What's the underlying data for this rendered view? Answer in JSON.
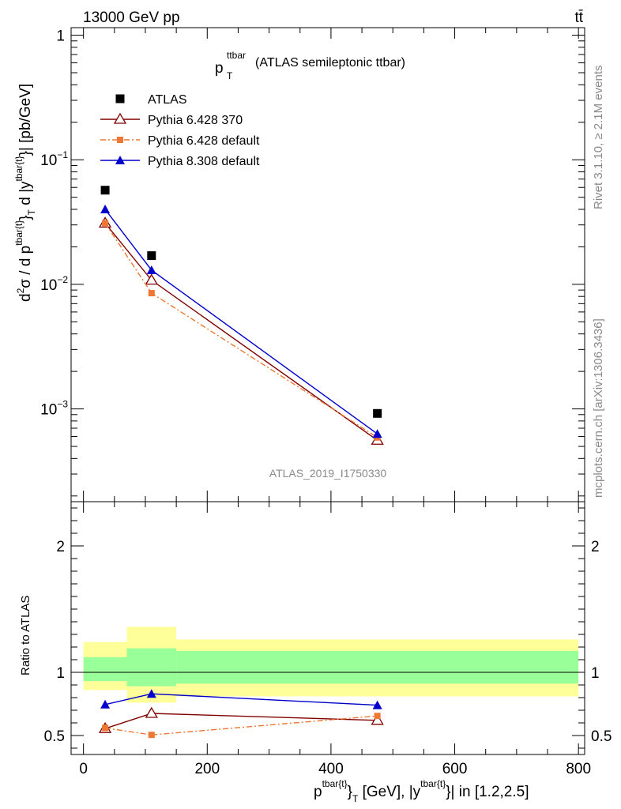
{
  "header": {
    "left": "13000 GeV pp",
    "right": "tt̄"
  },
  "side_labels": {
    "rivet": "Rivet 3.1.10, ≥ 2.1M events",
    "mcplots": "mcplots.cern.ch [arXiv:1306.3436]"
  },
  "chart_data": [
    {
      "type": "scatter",
      "title": "(ATLAS semileptonic ttbar)",
      "title_symbol": {
        "base": "p",
        "sup": "ttbar",
        "sub": "T"
      },
      "ylabel": {
        "d2": "d",
        "two": "2",
        "sigma": "σ / d p",
        "sup1": "tbar{t}",
        "sub1": "}",
        "subT": "T",
        "mid": " d |y",
        "sup2": "tbar{t}",
        "tail": "}| [pb/GeV]"
      },
      "xlim": [
        -20,
        810
      ],
      "ylim": [
        0.00018,
        1.15
      ],
      "yscale": "log",
      "yticks": [
        {
          "value": 1,
          "label": "1"
        },
        {
          "value": 0.1,
          "label": "10",
          "exp": "−1"
        },
        {
          "value": 0.01,
          "label": "10",
          "exp": "−2"
        },
        {
          "value": 0.001,
          "label": "10",
          "exp": "−3"
        }
      ],
      "watermark": "ATLAS_2019_I1750330",
      "legend_position": "top-left",
      "series": [
        {
          "name": "ATLAS",
          "style": "data",
          "color": "#000000",
          "x": [
            35,
            110,
            475
          ],
          "y": [
            0.057,
            0.017,
            0.00092
          ]
        },
        {
          "name": "Pythia 6.428 370",
          "style": "open-triangle",
          "color": "#800000",
          "x": [
            35,
            110,
            475
          ],
          "y": [
            0.031,
            0.0108,
            0.00056
          ]
        },
        {
          "name": "Pythia 6.428 default",
          "style": "dashdot-square",
          "color": "#ee7733",
          "x": [
            35,
            110,
            475
          ],
          "y": [
            0.031,
            0.0085,
            0.00059
          ]
        },
        {
          "name": "Pythia 8.308 default",
          "style": "filled-triangle",
          "color": "#0000cc",
          "x": [
            35,
            110,
            475
          ],
          "y": [
            0.04,
            0.013,
            0.00063
          ]
        }
      ]
    },
    {
      "type": "line",
      "ylabel": "Ratio to ATLAS",
      "xlabel": {
        "p": "p",
        "sup1": "tbar{t}",
        "sub": "}",
        "subT": "T",
        "rest": " [GeV], |y",
        "sup2": "tbar{t}",
        "tail": "}| in [1.2,2.5]"
      },
      "xlim": [
        -20,
        810
      ],
      "ylim": [
        0.35,
        2.35
      ],
      "xticks": [
        0,
        200,
        400,
        600,
        800
      ],
      "yticks": [
        0.5,
        1,
        2
      ],
      "reference_line": 1,
      "bands": [
        {
          "x": [
            0,
            70
          ],
          "yellow": [
            0.86,
            1.24
          ],
          "green": [
            0.93,
            1.12
          ]
        },
        {
          "x": [
            70,
            150
          ],
          "yellow": [
            0.76,
            1.36
          ],
          "green": [
            0.89,
            1.19
          ]
        },
        {
          "x": [
            150,
            800
          ],
          "yellow": [
            0.81,
            1.26
          ],
          "green": [
            0.91,
            1.17
          ]
        }
      ],
      "series": [
        {
          "name": "Pythia 6.428 370",
          "style": "open-triangle",
          "color": "#800000",
          "x": [
            35,
            110,
            475
          ],
          "y": [
            0.555,
            0.675,
            0.62
          ]
        },
        {
          "name": "Pythia 6.428 default",
          "style": "dashdot-square",
          "color": "#ee7733",
          "x": [
            35,
            110,
            475
          ],
          "y": [
            0.56,
            0.505,
            0.655
          ]
        },
        {
          "name": "Pythia 8.308 default",
          "style": "filled-triangle",
          "color": "#0000cc",
          "x": [
            35,
            110,
            475
          ],
          "y": [
            0.745,
            0.83,
            0.74
          ]
        }
      ],
      "band_colors": {
        "yellow": "#ffff99",
        "green": "#99ff99"
      }
    }
  ]
}
